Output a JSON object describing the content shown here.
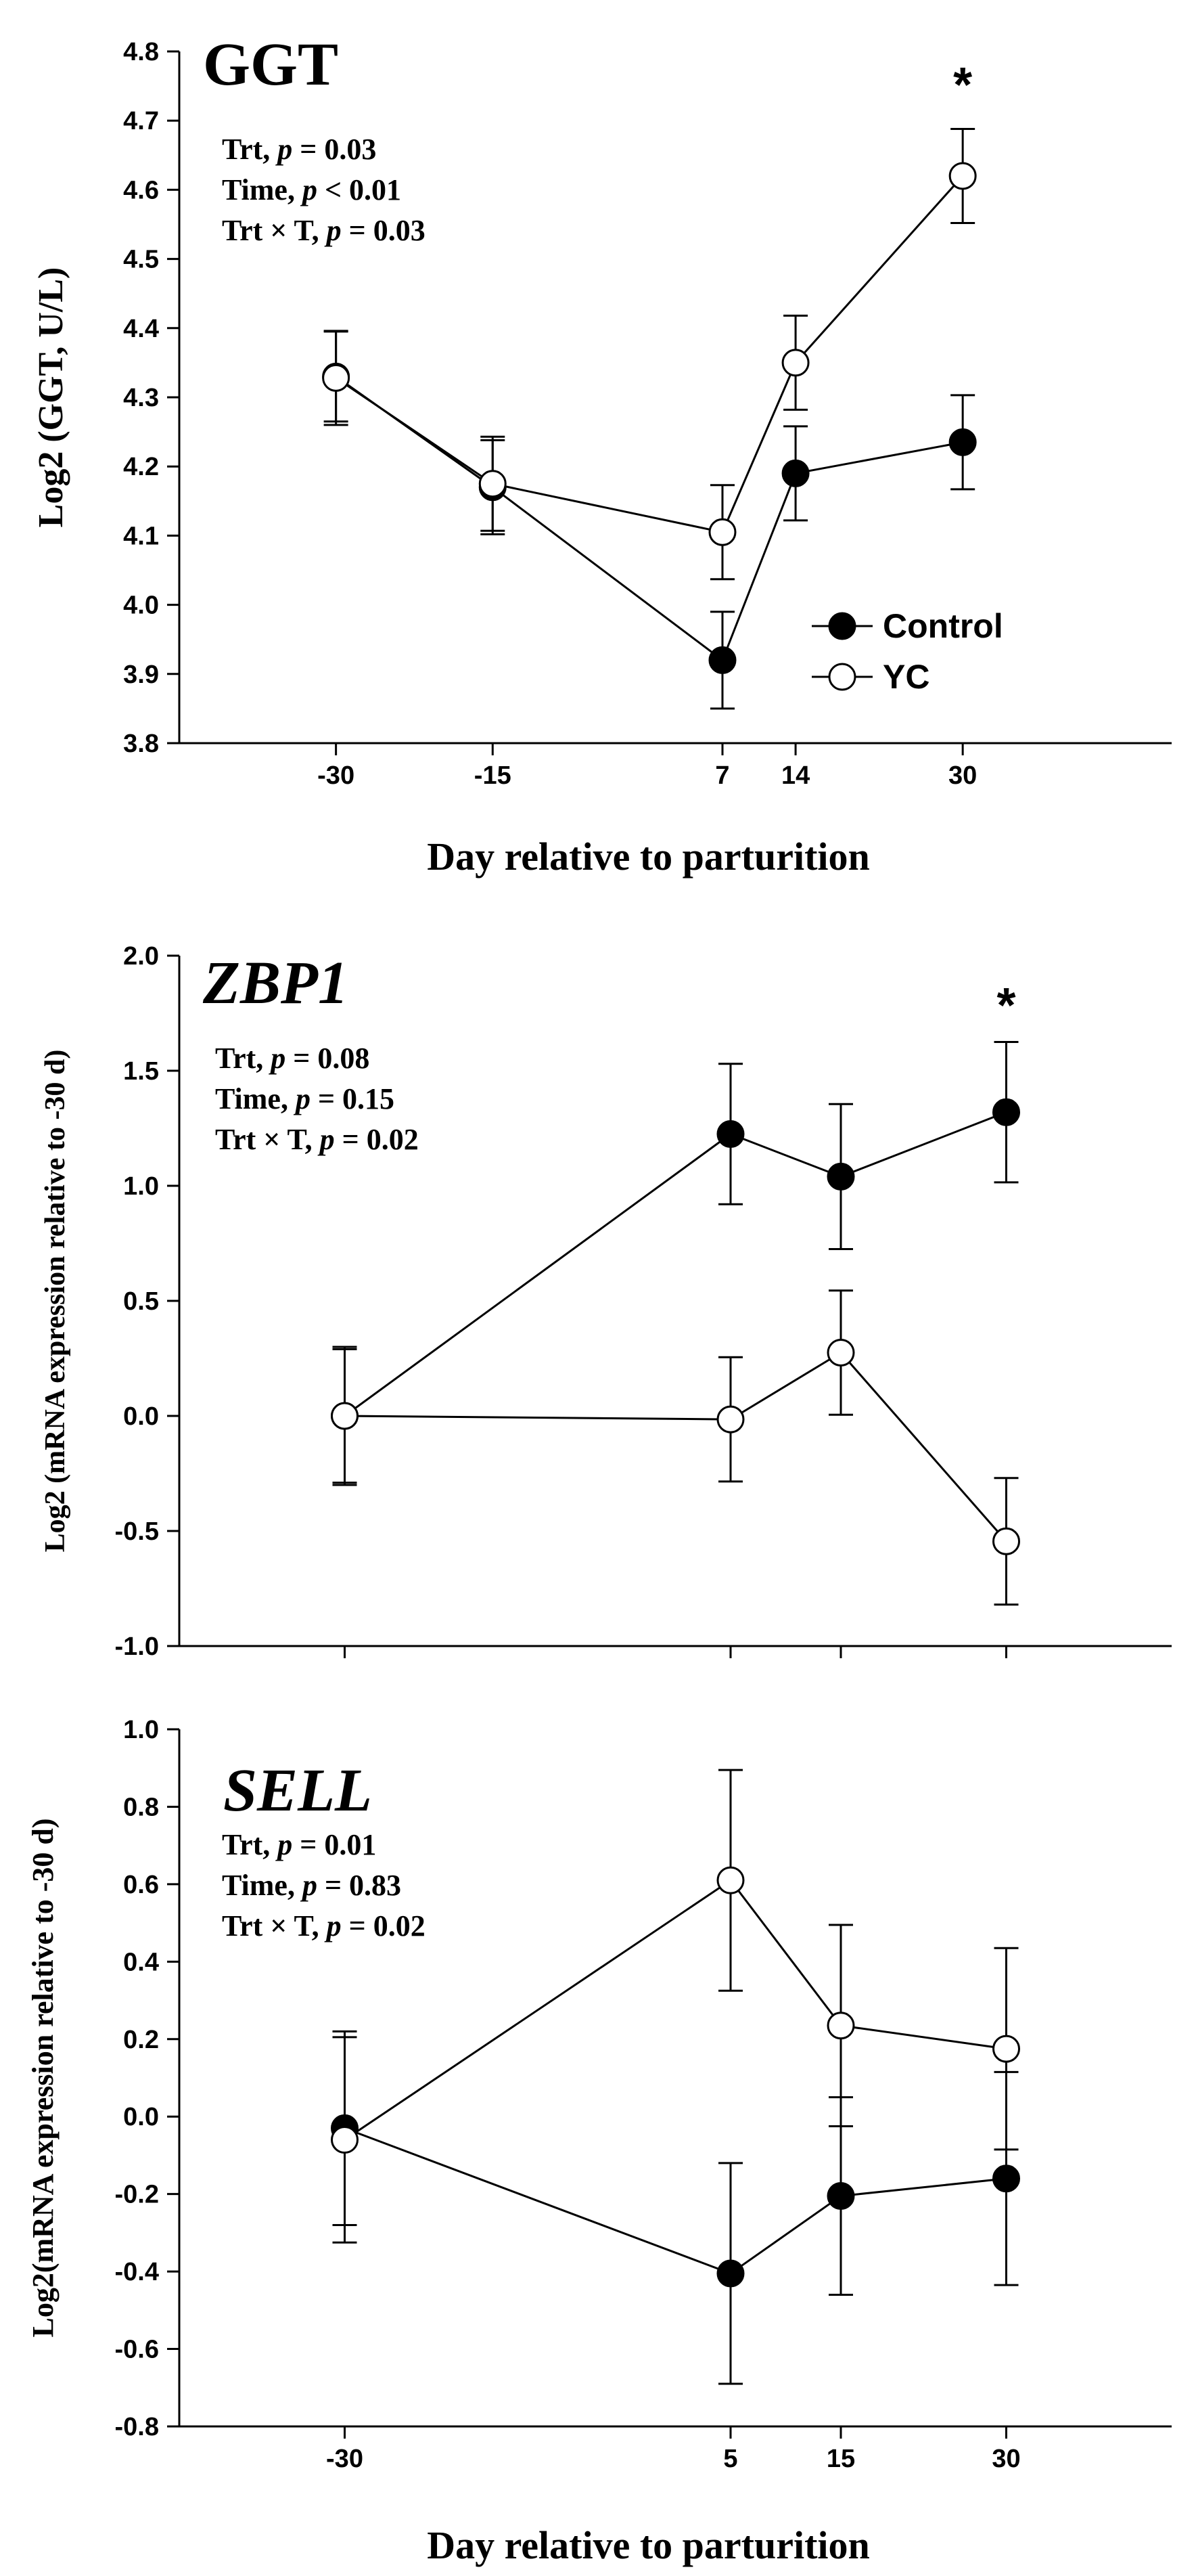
{
  "chart_data": [
    {
      "type": "line",
      "title": "GGT",
      "title_italic": false,
      "xlabel": "Day relative to parturition",
      "ylabel": "Log2 (GGT, U/L)",
      "x_ticks": [
        "-30",
        "-15",
        "7",
        "14",
        "30"
      ],
      "x_range": [
        -45,
        50
      ],
      "ylim": [
        3.8,
        4.8
      ],
      "y_ticks": [
        "3.8",
        "3.9",
        "4.0",
        "4.1",
        "4.2",
        "4.3",
        "4.4",
        "4.5",
        "4.6",
        "4.7",
        "4.8"
      ],
      "stats": [
        {
          "label": "Trt, ",
          "p": "p",
          "rest": " = 0.03"
        },
        {
          "label": "Time, ",
          "p": "p",
          "rest": " < 0.01"
        },
        {
          "label": "Trt × T,  ",
          "p": "p",
          "rest": " = 0.03"
        }
      ],
      "annotations": [
        {
          "text": "*",
          "x": 30
        }
      ],
      "legend": {
        "show": true,
        "placement": "lower-right"
      },
      "series": [
        {
          "name": "Control",
          "marker": "filled",
          "x": [
            -30,
            -15,
            7,
            14,
            30
          ],
          "y": [
            4.33,
            4.17,
            3.92,
            4.19,
            4.235
          ],
          "err": [
            0.065,
            0.068,
            0.07,
            0.068,
            0.068
          ]
        },
        {
          "name": "YC",
          "marker": "open",
          "x": [
            -30,
            -15,
            7,
            14,
            30
          ],
          "y": [
            4.328,
            4.175,
            4.105,
            4.35,
            4.62
          ],
          "err": [
            0.068,
            0.068,
            0.068,
            0.068,
            0.068
          ]
        }
      ]
    },
    {
      "type": "line",
      "title": "ZBP1",
      "title_italic": true,
      "xlabel": "",
      "ylabel": "Log2 (mRNA expression relative to -30 d)",
      "x_ticks": [],
      "x_range": [
        -45,
        45
      ],
      "ylim": [
        -1.0,
        2.0
      ],
      "y_ticks": [
        "-1.0",
        "-0.5",
        "0.0",
        "0.5",
        "1.0",
        "1.5",
        "2.0"
      ],
      "stats": [
        {
          "label": "Trt, ",
          "p": "p",
          "rest": " = 0.08"
        },
        {
          "label": "Time, ",
          "p": "p",
          "rest": " = 0.15"
        },
        {
          "label": "Trt × T,  ",
          "p": "p",
          "rest": " = 0.02"
        }
      ],
      "annotations": [
        {
          "text": "*",
          "x": 30
        }
      ],
      "legend": {
        "show": false
      },
      "series": [
        {
          "name": "Control",
          "marker": "filled",
          "x": [
            -30,
            5,
            15,
            30
          ],
          "y": [
            0.0,
            1.225,
            1.04,
            1.32
          ],
          "err": [
            0.29,
            0.305,
            0.315,
            0.305
          ]
        },
        {
          "name": "YC",
          "marker": "open",
          "x": [
            -30,
            5,
            15,
            30
          ],
          "y": [
            0.0,
            -0.015,
            0.275,
            -0.545
          ],
          "err": [
            0.3,
            0.27,
            0.27,
            0.275
          ]
        }
      ]
    },
    {
      "type": "line",
      "title": "SELL",
      "title_italic": true,
      "xlabel": "Day relative to parturition",
      "ylabel": "Log2(mRNA expression relative to -30 d)",
      "x_ticks": [
        "-30",
        "5",
        "15",
        "30"
      ],
      "x_range": [
        -45,
        45
      ],
      "ylim": [
        -0.8,
        1.0
      ],
      "y_ticks": [
        "-0.8",
        "-0.6",
        "-0.4",
        "-0.2",
        "0.0",
        "0.2",
        "0.4",
        "0.6",
        "0.8",
        "1.0"
      ],
      "stats": [
        {
          "label": "Trt, ",
          "p": "p",
          "rest": " = 0.01"
        },
        {
          "label": "Time, ",
          "p": "p",
          "rest": " = 0.83"
        },
        {
          "label": "Trt × T,  ",
          "p": "p",
          "rest": " = 0.02"
        }
      ],
      "annotations": [],
      "legend": {
        "show": false
      },
      "series": [
        {
          "name": "Control",
          "marker": "filled",
          "x": [
            -30,
            5,
            15,
            30
          ],
          "y": [
            -0.03,
            -0.405,
            -0.205,
            -0.16
          ],
          "err": [
            0.25,
            0.285,
            0.255,
            0.275
          ]
        },
        {
          "name": "YC",
          "marker": "open",
          "x": [
            -30,
            5,
            15,
            30
          ],
          "y": [
            -0.06,
            0.61,
            0.235,
            0.175
          ],
          "err": [
            0.265,
            0.285,
            0.26,
            0.26
          ]
        }
      ]
    }
  ]
}
